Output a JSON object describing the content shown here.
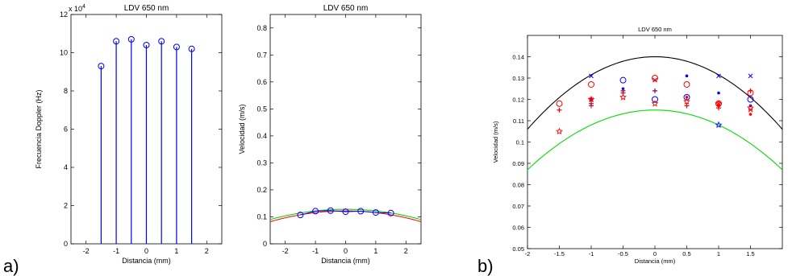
{
  "panel_labels": [
    "a)",
    "b)"
  ],
  "chart_data": [
    {
      "type": "stem",
      "title": "LDV 650 nm",
      "xlabel": "Distancia (mm)",
      "ylabel": "Frecuencia Doppler (Hz)",
      "y_exponent_label": "x 10",
      "y_exponent": "4",
      "xlim": [
        -2.5,
        2.5
      ],
      "ylim": [
        0,
        12
      ],
      "x_ticks": [
        -2,
        -1,
        0,
        1,
        2
      ],
      "y_ticks": [
        0,
        2,
        4,
        6,
        8,
        10,
        12
      ],
      "x_tick_labels": [
        "-2",
        "-1",
        "0",
        "1",
        "2"
      ],
      "y_tick_labels": [
        "0",
        "2",
        "4",
        "6",
        "8",
        "10",
        "12"
      ],
      "series": [
        {
          "color": "#0000ff",
          "marker": "circle",
          "x": [
            -1.5,
            -1.0,
            -0.5,
            0.0,
            0.5,
            1.0,
            1.5
          ],
          "y": [
            9.3,
            10.6,
            10.7,
            10.4,
            10.6,
            10.3,
            10.2
          ]
        }
      ],
      "grid": false
    },
    {
      "type": "line",
      "title": "LDV 650 nm",
      "xlabel": "Distancia (mm)",
      "ylabel": "Velocidad (m/s)",
      "xlim": [
        -2.5,
        2.5
      ],
      "ylim": [
        0,
        0.85
      ],
      "x_ticks": [
        -2,
        -1,
        0,
        1,
        2
      ],
      "y_ticks": [
        0,
        0.1,
        0.2,
        0.3,
        0.4,
        0.5,
        0.6,
        0.7,
        0.8
      ],
      "x_tick_labels": [
        "-2",
        "-1",
        "0",
        "1",
        "2"
      ],
      "y_tick_labels": [
        "0",
        "0.1",
        "0.2",
        "0.3",
        "0.4",
        "0.5",
        "0.6",
        "0.7",
        "0.8"
      ],
      "series": [
        {
          "color": "#00cc00",
          "style": "line",
          "curve": "parabola",
          "peak": 0.128,
          "edge_y_at_2_5": 0.09
        },
        {
          "color": "#ff0000",
          "style": "line",
          "curve": "parabola",
          "peak": 0.122,
          "edge_y_at_2_5": 0.082
        },
        {
          "color": "#0000ff",
          "style": "line+circle",
          "x": [
            -1.5,
            -1.0,
            -0.5,
            0.0,
            0.5,
            1.0,
            1.5
          ],
          "y": [
            0.107,
            0.121,
            0.123,
            0.119,
            0.121,
            0.116,
            0.114
          ]
        }
      ],
      "grid": false
    },
    {
      "type": "scatter",
      "title": "LDV 650 nm",
      "xlabel": "Distancia (mm)",
      "ylabel": "Velocidad (m/s)",
      "xlim": [
        -2,
        2
      ],
      "ylim": [
        0.05,
        0.15
      ],
      "x_ticks": [
        -2,
        -1.5,
        -1,
        -0.5,
        0,
        0.5,
        1,
        1.5
      ],
      "y_ticks": [
        0.05,
        0.06,
        0.07,
        0.08,
        0.09,
        0.1,
        0.11,
        0.12,
        0.13,
        0.14
      ],
      "x_tick_labels": [
        "-2",
        "-1.5",
        "-1",
        "-0.5",
        "0",
        "0.5",
        "1",
        "1.5"
      ],
      "y_tick_labels": [
        "0.05",
        "0.06",
        "0.07",
        "0.08",
        "0.09",
        "0.1",
        "0.11",
        "0.12",
        "0.13",
        "0.14"
      ],
      "curves": [
        {
          "color": "#000000",
          "curve": "parabola",
          "peak": 0.14,
          "y_at_minus_2": 0.106
        },
        {
          "color": "#00dd00",
          "curve": "parabola",
          "peak": 0.115,
          "y_at_minus_2": 0.087
        }
      ],
      "series": [
        {
          "color": "#0000ff",
          "marker": "x",
          "x": [
            -1.0,
            0.0,
            1.0,
            1.5
          ],
          "y": [
            0.131,
            0.129,
            0.131,
            0.131
          ]
        },
        {
          "color": "#0000ff",
          "marker": "dot",
          "x": [
            -1.0,
            -0.5,
            0.5,
            1.0,
            1.5
          ],
          "y": [
            0.12,
            0.125,
            0.131,
            0.123,
            0.117
          ]
        },
        {
          "color": "#0000ff",
          "marker": "circle",
          "x": [
            -0.5,
            0.0,
            0.5,
            1.5
          ],
          "y": [
            0.129,
            0.12,
            0.121,
            0.12
          ]
        },
        {
          "color": "#0000ff",
          "marker": "star",
          "x": [
            1.0
          ],
          "y": [
            0.108
          ]
        },
        {
          "color": "#ff0000",
          "marker": "circle",
          "x": [
            -1.5,
            -1.0,
            0.0,
            0.5,
            1.0,
            1.5
          ],
          "y": [
            0.118,
            0.127,
            0.13,
            0.127,
            0.118,
            0.123
          ]
        },
        {
          "color": "#ff0000",
          "marker": "star",
          "x": [
            -1.5,
            -1.0,
            -0.5,
            0.0,
            0.5,
            1.0,
            1.5
          ],
          "y": [
            0.105,
            0.12,
            0.121,
            0.118,
            0.119,
            0.118,
            0.116
          ]
        },
        {
          "color": "#ff0000",
          "marker": "plus",
          "x": [
            -1.5,
            -1.0,
            -0.5,
            0.5,
            1.0,
            1.5
          ],
          "y": [
            0.115,
            0.117,
            0.123,
            0.117,
            0.116,
            0.124
          ]
        },
        {
          "color": "#ff0000",
          "marker": "x",
          "x": [
            -1.0,
            0.0,
            1.0,
            1.5
          ],
          "y": [
            0.12,
            0.129,
            0.118,
            0.115
          ]
        },
        {
          "color": "#ff0000",
          "marker": "dot",
          "x": [
            0.5,
            1.0,
            1.5
          ],
          "y": [
            0.121,
            0.117,
            0.113
          ]
        },
        {
          "color": "#7a0f5a",
          "marker": "plus",
          "x": [
            -1.0,
            -0.5,
            0.0
          ],
          "y": [
            0.118,
            0.124,
            0.124
          ]
        }
      ],
      "grid": false
    }
  ]
}
